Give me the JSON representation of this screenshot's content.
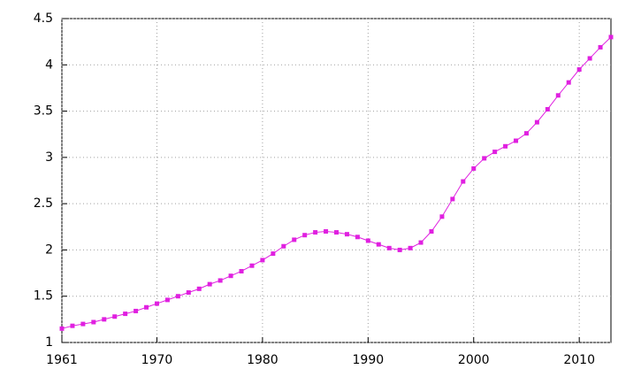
{
  "chart_data": {
    "type": "line",
    "x": [
      1961,
      1962,
      1963,
      1964,
      1965,
      1966,
      1967,
      1968,
      1969,
      1970,
      1971,
      1972,
      1973,
      1974,
      1975,
      1976,
      1977,
      1978,
      1979,
      1980,
      1981,
      1982,
      1983,
      1984,
      1985,
      1986,
      1987,
      1988,
      1989,
      1990,
      1991,
      1992,
      1993,
      1994,
      1995,
      1996,
      1997,
      1998,
      1999,
      2000,
      2001,
      2002,
      2003,
      2004,
      2005,
      2006,
      2007,
      2008,
      2009,
      2010,
      2011,
      2012,
      2013
    ],
    "values": [
      1.15,
      1.18,
      1.2,
      1.22,
      1.25,
      1.28,
      1.31,
      1.34,
      1.38,
      1.42,
      1.46,
      1.5,
      1.54,
      1.58,
      1.63,
      1.67,
      1.72,
      1.77,
      1.83,
      1.89,
      1.96,
      2.04,
      2.11,
      2.16,
      2.19,
      2.2,
      2.19,
      2.17,
      2.14,
      2.1,
      2.06,
      2.02,
      2.0,
      2.02,
      2.08,
      2.2,
      2.36,
      2.55,
      2.74,
      2.88,
      2.99,
      3.06,
      3.12,
      3.18,
      3.26,
      3.38,
      3.52,
      3.67,
      3.81,
      3.95,
      4.07,
      4.19,
      4.3
    ],
    "color": "#e020e0",
    "xlim": [
      1961,
      2013
    ],
    "xticks": [
      1961,
      1970,
      1980,
      1990,
      2000,
      2010
    ],
    "ylim": [
      1,
      4.5
    ],
    "yticks": [
      1,
      1.5,
      2,
      2.5,
      3,
      3.5,
      4,
      4.5
    ],
    "grid": true
  }
}
